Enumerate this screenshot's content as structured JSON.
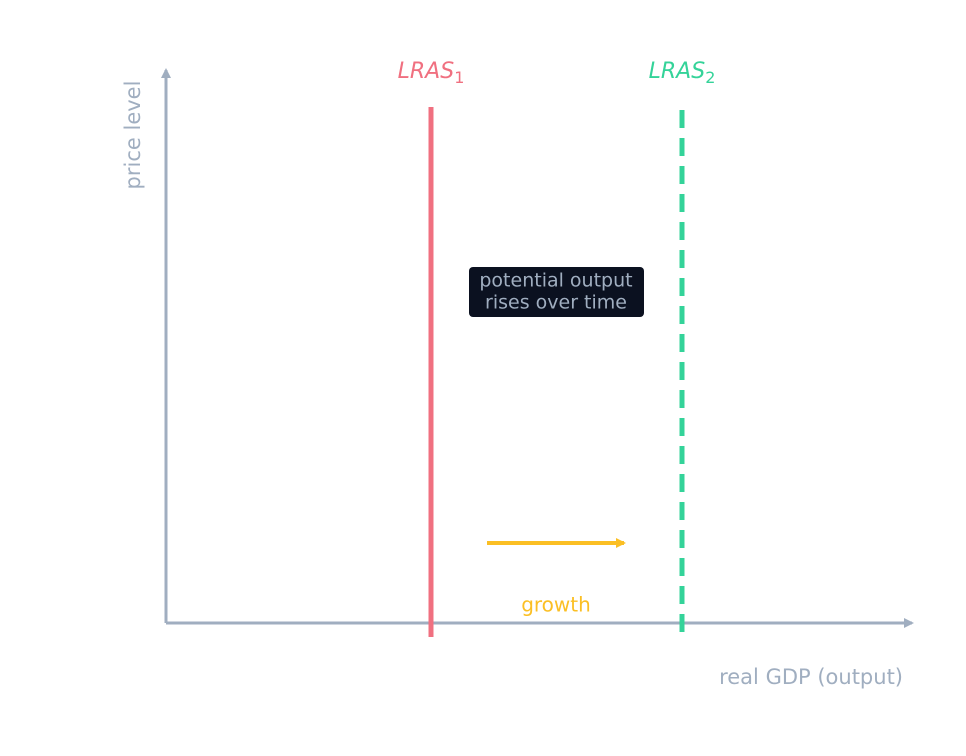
{
  "axes": {
    "y_label": "price level",
    "x_label": "real GDP (output)"
  },
  "curves": [
    {
      "name": "LRAS",
      "subscript": "1"
    },
    {
      "name": "LRAS",
      "subscript": "2"
    }
  ],
  "annotation": {
    "line1": "potential output",
    "line2": "rises over time"
  },
  "arrow_label": "growth"
}
